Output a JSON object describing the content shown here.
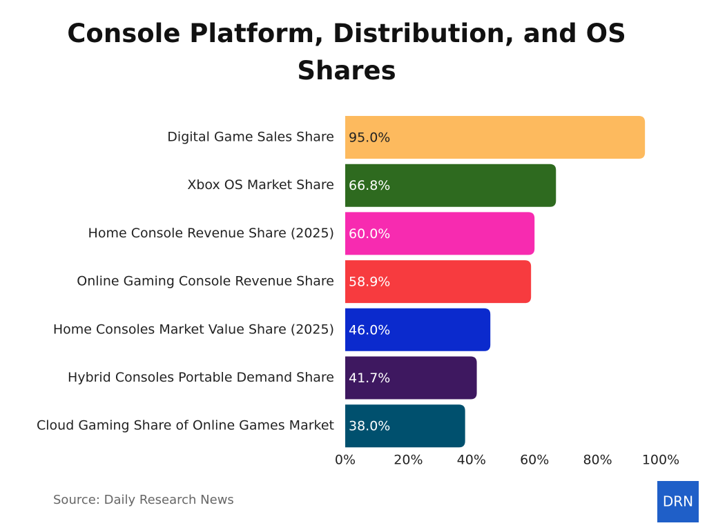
{
  "chart_data": {
    "type": "bar",
    "orientation": "horizontal",
    "title": "Console Platform, Distribution, and OS Shares",
    "categories": [
      "Digital Game Sales Share",
      "Xbox OS Market Share",
      "Home Console Revenue Share (2025)",
      "Online Gaming Console Revenue Share",
      "Home Consoles Market Value Share (2025)",
      "Hybrid Consoles Portable Demand Share",
      "Cloud Gaming Share of Online Games Market"
    ],
    "values": [
      95.0,
      66.8,
      60.0,
      58.9,
      46.0,
      41.7,
      38.0
    ],
    "value_labels": [
      "95.0%",
      "66.8%",
      "60.0%",
      "58.9%",
      "46.0%",
      "41.7%",
      "38.0%"
    ],
    "colors": [
      "#fdba5e",
      "#2e6a1f",
      "#f72bb0",
      "#f73b3f",
      "#0b2acd",
      "#3e1860",
      "#00506e"
    ],
    "xlim": [
      0,
      100
    ],
    "xticks": [
      {
        "value": 0,
        "label": "0%"
      },
      {
        "value": 20,
        "label": "20%"
      },
      {
        "value": 40,
        "label": "40%"
      },
      {
        "value": 60,
        "label": "60%"
      },
      {
        "value": 80,
        "label": "80%"
      },
      {
        "value": 100,
        "label": "100%"
      }
    ],
    "grid": false,
    "source": "Source: Daily Research News",
    "logo": "DRN"
  }
}
